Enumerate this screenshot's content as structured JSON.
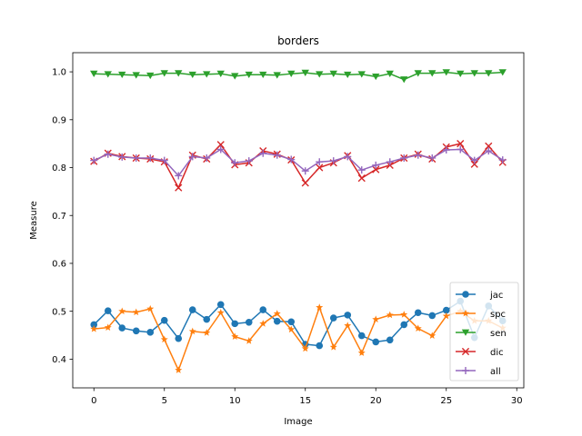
{
  "chart_data": {
    "type": "line",
    "title": "borders",
    "xlabel": "Image",
    "ylabel": "Measure",
    "xlim": [
      -1.5,
      30.5
    ],
    "ylim": [
      0.34,
      1.04
    ],
    "xticks": [
      0,
      5,
      10,
      15,
      20,
      25,
      30
    ],
    "yticks": [
      0.4,
      0.5,
      0.6,
      0.7,
      0.8,
      0.9,
      1.0
    ],
    "ytick_labels": [
      "0.4",
      "0.5",
      "0.6",
      "0.7",
      "0.8",
      "0.9",
      "1.0"
    ],
    "grid": false,
    "legend_position": "lower-right",
    "x": [
      0,
      1,
      2,
      3,
      4,
      5,
      6,
      7,
      8,
      9,
      10,
      11,
      12,
      13,
      14,
      15,
      16,
      17,
      18,
      19,
      20,
      21,
      22,
      23,
      24,
      25,
      26,
      27,
      28,
      29
    ],
    "series": [
      {
        "name": "jac",
        "color": "#1f77b4",
        "marker": "circle",
        "values": [
          0.472,
          0.501,
          0.465,
          0.459,
          0.456,
          0.481,
          0.443,
          0.503,
          0.483,
          0.514,
          0.474,
          0.477,
          0.503,
          0.479,
          0.478,
          0.431,
          0.428,
          0.486,
          0.492,
          0.449,
          0.436,
          0.44,
          0.472,
          0.497,
          0.491,
          0.502,
          0.521,
          0.445,
          0.511,
          0.48
        ]
      },
      {
        "name": "spc",
        "color": "#ff7f0e",
        "marker": "star",
        "values": [
          0.463,
          0.466,
          0.5,
          0.498,
          0.505,
          0.441,
          0.377,
          0.458,
          0.455,
          0.497,
          0.447,
          0.438,
          0.474,
          0.495,
          0.462,
          0.422,
          0.508,
          0.425,
          0.47,
          0.413,
          0.483,
          0.492,
          0.493,
          0.464,
          0.449,
          0.49,
          0.5,
          0.48,
          0.48,
          0.465
        ]
      },
      {
        "name": "sen",
        "color": "#2ca02c",
        "marker": "triangle-down",
        "values": [
          0.996,
          0.995,
          0.994,
          0.993,
          0.992,
          0.997,
          0.997,
          0.994,
          0.995,
          0.996,
          0.991,
          0.994,
          0.994,
          0.993,
          0.996,
          0.998,
          0.995,
          0.996,
          0.994,
          0.995,
          0.99,
          0.996,
          0.984,
          0.997,
          0.997,
          0.999,
          0.996,
          0.997,
          0.997,
          0.999
        ]
      },
      {
        "name": "dic",
        "color": "#d62728",
        "marker": "x",
        "values": [
          0.813,
          0.83,
          0.823,
          0.82,
          0.818,
          0.812,
          0.758,
          0.826,
          0.818,
          0.848,
          0.806,
          0.81,
          0.835,
          0.828,
          0.816,
          0.768,
          0.8,
          0.81,
          0.825,
          0.778,
          0.796,
          0.805,
          0.82,
          0.828,
          0.818,
          0.843,
          0.85,
          0.807,
          0.845,
          0.811
        ]
      },
      {
        "name": "all",
        "color": "#9467bd",
        "marker": "plus",
        "values": [
          0.815,
          0.828,
          0.822,
          0.82,
          0.82,
          0.815,
          0.783,
          0.823,
          0.82,
          0.838,
          0.81,
          0.814,
          0.83,
          0.826,
          0.817,
          0.793,
          0.812,
          0.814,
          0.823,
          0.795,
          0.805,
          0.812,
          0.82,
          0.826,
          0.82,
          0.837,
          0.838,
          0.815,
          0.835,
          0.816
        ]
      }
    ]
  }
}
